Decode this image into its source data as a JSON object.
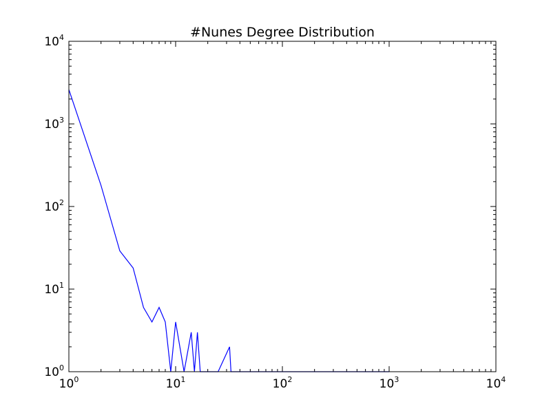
{
  "chart_data": {
    "type": "line",
    "title": "#Nunes Degree Distribution",
    "xlabel": "",
    "ylabel": "",
    "xscale": "log",
    "yscale": "log",
    "xlim": [
      1,
      10000
    ],
    "ylim": [
      1,
      10000
    ],
    "grid": false,
    "legend": "none",
    "x_ticks": [
      {
        "base": "10",
        "exp": "0",
        "value": 1
      },
      {
        "base": "10",
        "exp": "1",
        "value": 10
      },
      {
        "base": "10",
        "exp": "2",
        "value": 100
      },
      {
        "base": "10",
        "exp": "3",
        "value": 1000
      },
      {
        "base": "10",
        "exp": "4",
        "value": 10000
      }
    ],
    "y_ticks": [
      {
        "base": "10",
        "exp": "0",
        "value": 1
      },
      {
        "base": "10",
        "exp": "1",
        "value": 10
      },
      {
        "base": "10",
        "exp": "2",
        "value": 100
      },
      {
        "base": "10",
        "exp": "3",
        "value": 1000
      },
      {
        "base": "10",
        "exp": "4",
        "value": 10000
      }
    ],
    "series": [
      {
        "color": "#0000ff",
        "x": [
          1,
          2,
          3,
          4,
          5,
          6,
          7,
          8,
          9,
          10,
          12,
          14,
          15,
          16,
          17,
          25,
          32,
          33,
          1000
        ],
        "y": [
          2600,
          180,
          29,
          18,
          6,
          4,
          6,
          4,
          1,
          4,
          1,
          3,
          1,
          3,
          1,
          1,
          2,
          1,
          1
        ]
      }
    ]
  }
}
